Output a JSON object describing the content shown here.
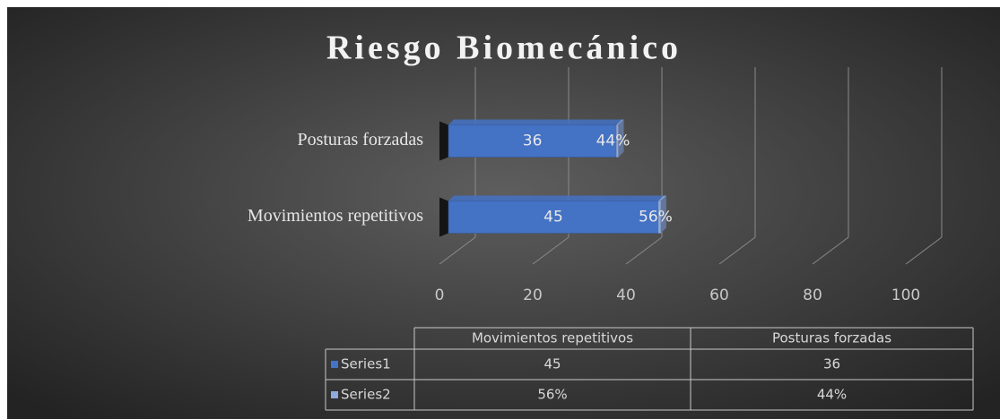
{
  "chart_data": {
    "type": "bar",
    "orientation": "horizontal",
    "stacked": true,
    "title": "Riesgo Biomecánico",
    "categories": [
      "Movimientos repetitivos",
      "Posturas forzadas"
    ],
    "series": [
      {
        "name": "Series1",
        "color": "#4472c4",
        "values": [
          45,
          36
        ]
      },
      {
        "name": "Series2",
        "color": "#8faadc",
        "values": [
          0.56,
          0.44
        ],
        "value_labels": [
          "56%",
          "44%"
        ]
      }
    ],
    "xlim": [
      0,
      100
    ],
    "xticks": [
      0,
      20,
      40,
      60,
      80,
      100
    ],
    "grid": true,
    "data_table": true
  }
}
